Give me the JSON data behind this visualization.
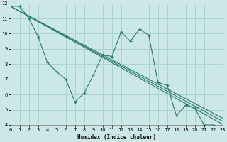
{
  "xlabel": "Humidex (Indice chaleur)",
  "background_color": "#cce8e6",
  "grid_color": "#aad4d0",
  "line_color": "#2a7a6a",
  "xlim": [
    0,
    23
  ],
  "ylim": [
    4,
    12
  ],
  "yticks": [
    4,
    5,
    6,
    7,
    8,
    9,
    10,
    11,
    12
  ],
  "xticks": [
    0,
    1,
    2,
    3,
    4,
    5,
    6,
    7,
    8,
    9,
    10,
    11,
    12,
    13,
    14,
    15,
    16,
    17,
    18,
    19,
    20,
    21,
    22,
    23
  ],
  "jagged_x": [
    0,
    1,
    2,
    3,
    4,
    5,
    6,
    7,
    8,
    9,
    10,
    11,
    12,
    13,
    14,
    15,
    16,
    17,
    18,
    19,
    20,
    21,
    22
  ],
  "jagged_y": [
    11.8,
    11.8,
    11.0,
    9.8,
    8.1,
    7.5,
    7.0,
    5.5,
    6.1,
    7.3,
    8.6,
    8.5,
    10.1,
    9.5,
    10.3,
    9.9,
    6.8,
    6.6,
    4.6,
    5.3,
    5.1,
    4.0,
    4.0
  ],
  "trends": [
    [
      [
        0,
        23
      ],
      [
        11.8,
        4.05
      ]
    ],
    [
      [
        0,
        23
      ],
      [
        11.8,
        4.25
      ]
    ],
    [
      [
        0,
        23
      ],
      [
        11.8,
        4.45
      ]
    ]
  ]
}
